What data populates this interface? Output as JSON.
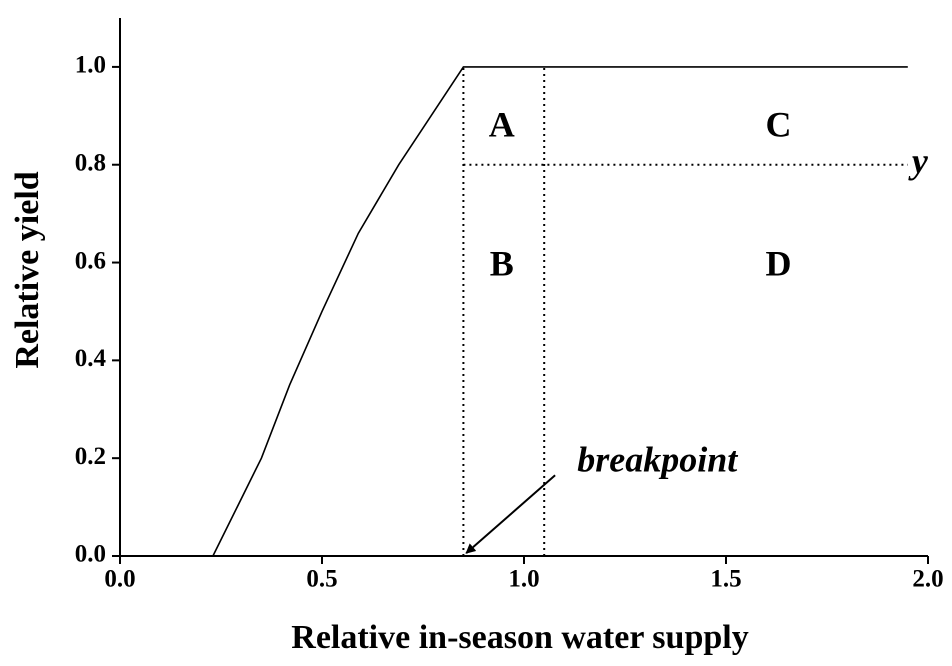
{
  "chart_data": {
    "type": "line",
    "xlabel": "Relative in-season water supply",
    "ylabel": "Relative yield",
    "xlim": [
      0,
      2.0
    ],
    "ylim": [
      0,
      1.1
    ],
    "xticks": [
      {
        "value": 0,
        "label": "0.0"
      },
      {
        "value": 0.5,
        "label": "0.5"
      },
      {
        "value": 1.0,
        "label": "1.0"
      },
      {
        "value": 1.5,
        "label": "1.5"
      },
      {
        "value": 2.0,
        "label": "2.0"
      }
    ],
    "yticks": [
      {
        "value": 0,
        "label": "0.0"
      },
      {
        "value": 0.2,
        "label": "0.2"
      },
      {
        "value": 0.4,
        "label": "0.4"
      },
      {
        "value": 0.6,
        "label": "0.6"
      },
      {
        "value": 0.8,
        "label": "0.8"
      },
      {
        "value": 1.0,
        "label": "1.0"
      }
    ],
    "series": [
      {
        "color": "#000000",
        "x": [
          0.23,
          0.29,
          0.35,
          0.42,
          0.5,
          0.59,
          0.69,
          0.77,
          0.85,
          1.95
        ],
        "values": [
          0,
          0.1,
          0.2,
          0.35,
          0.5,
          0.66,
          0.8,
          0.9,
          1.0,
          1.0
        ]
      }
    ],
    "dotted_lines": [
      {
        "x": [
          0.85,
          0.85
        ],
        "y": [
          0,
          1.0
        ]
      },
      {
        "x": [
          1.05,
          1.05
        ],
        "y": [
          0,
          1.0
        ]
      },
      {
        "x": [
          0.85,
          1.95
        ],
        "y": [
          0.8,
          0.8
        ]
      }
    ],
    "annotations": [
      {
        "text": "A",
        "x": 0.945,
        "y": 0.875,
        "italic": false
      },
      {
        "text": "C",
        "x": 1.63,
        "y": 0.875,
        "italic": false
      },
      {
        "text": "B",
        "x": 0.945,
        "y": 0.59,
        "italic": false
      },
      {
        "text": "D",
        "x": 1.63,
        "y": 0.59,
        "italic": false
      },
      {
        "text": "y",
        "x": 1.98,
        "y": 0.8,
        "italic": true
      },
      {
        "text": "breakpoint",
        "x": 1.33,
        "y": 0.19,
        "italic": true
      }
    ],
    "arrow": {
      "x": [
        1.077,
        0.857
      ],
      "y": [
        0.165,
        0.006
      ]
    }
  }
}
